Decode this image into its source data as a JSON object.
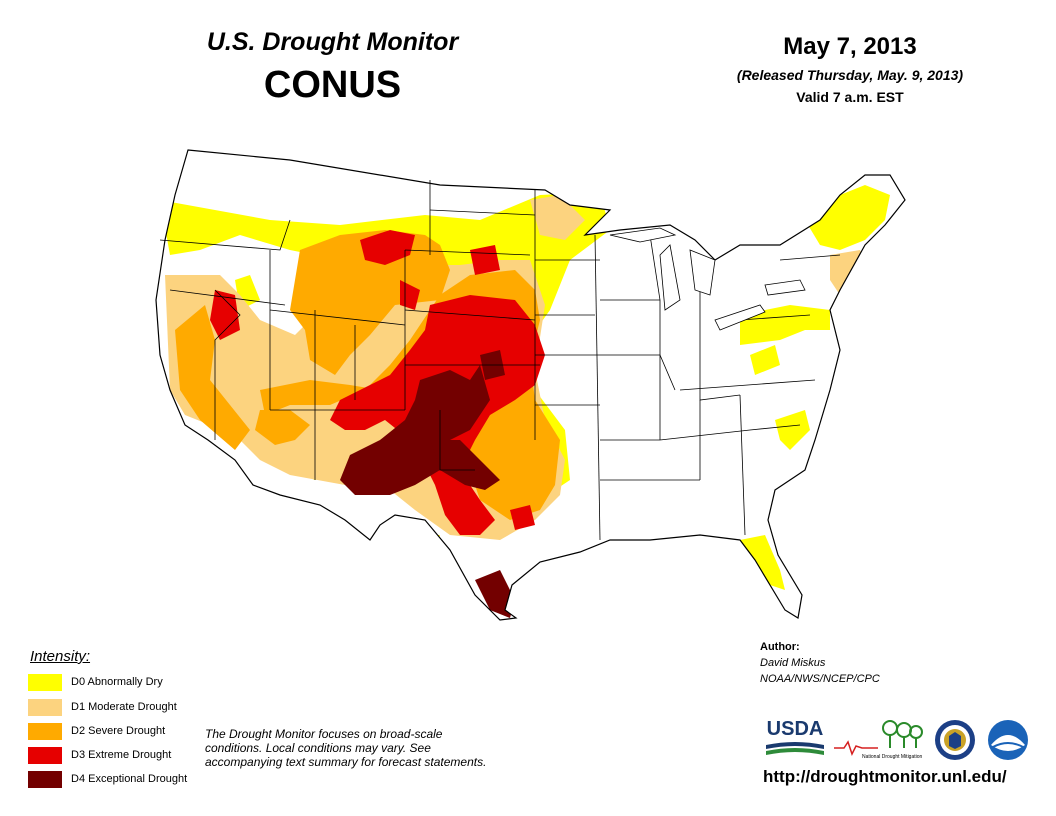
{
  "header": {
    "title": "U.S. Drought Monitor",
    "region": "CONUS",
    "date": "May 7, 2013",
    "released": "(Released Thursday, May. 9, 2013)",
    "valid": "Valid 7 a.m. EST"
  },
  "legend": {
    "title": "Intensity:",
    "items": [
      {
        "label": "D0 Abnormally Dry",
        "color": "#ffff00"
      },
      {
        "label": "D1 Moderate Drought",
        "color": "#fcd37f"
      },
      {
        "label": "D2 Severe Drought",
        "color": "#ffaa00"
      },
      {
        "label": "D3 Extreme Drought",
        "color": "#e60000"
      },
      {
        "label": "D4 Exceptional Drought",
        "color": "#730000"
      }
    ]
  },
  "disclaimer": "The Drought Monitor focuses on broad-scale conditions. Local conditions may vary. See accompanying text summary for forecast statements.",
  "author": {
    "heading": "Author:",
    "name": "David Miskus",
    "org": "NOAA/NWS/NCEP/CPC"
  },
  "logos": {
    "usda": "USDA",
    "ndmc": "National Drought Mitigation Center",
    "doc_seal": "doc-seal-icon",
    "noaa": "noaa-logo-icon"
  },
  "url": "http://droughtmonitor.unl.edu/"
}
